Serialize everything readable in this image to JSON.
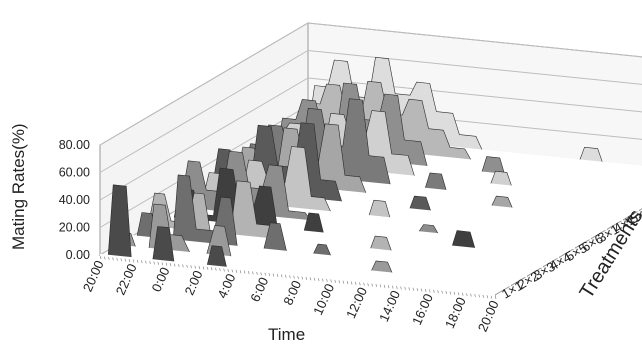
{
  "chart_data": {
    "type": "area",
    "subtype": "3d-ribbon",
    "title": "",
    "xlabel": "Time",
    "ylabel": "Mating Rates(%)",
    "depth_label": "Treatments",
    "z_ticks": [
      "0.00",
      "20.00",
      "40.00",
      "60.00",
      "80.00"
    ],
    "zlim": [
      0,
      80
    ],
    "x_ticks": [
      "20:00",
      "22:00",
      "0:00",
      "2:00",
      "4:00",
      "6:00",
      "8:00",
      "10:00",
      "12:00",
      "14:00",
      "16:00",
      "18:00",
      "20:00"
    ],
    "x_range_hours": [
      0,
      24
    ],
    "grid": true,
    "legend": "none",
    "series": [
      {
        "name": "1×1",
        "color": "#4a4a4a",
        "points": [
          [
            0.5,
            0
          ],
          [
            0.8,
            52
          ],
          [
            1.6,
            52
          ],
          [
            1.9,
            0
          ],
          [
            3.2,
            0
          ],
          [
            3.5,
            25
          ],
          [
            4.2,
            25
          ],
          [
            4.5,
            0
          ],
          [
            6.5,
            0
          ],
          [
            6.8,
            15
          ],
          [
            7.4,
            15
          ],
          [
            7.7,
            0
          ],
          [
            24,
            0
          ]
        ]
      },
      {
        "name": "2×2",
        "color": "#9a9a9a",
        "points": [
          [
            0,
            0
          ],
          [
            0.3,
            10
          ],
          [
            0.9,
            10
          ],
          [
            1.2,
            0
          ],
          [
            2.0,
            0
          ],
          [
            2.3,
            33
          ],
          [
            3.0,
            33
          ],
          [
            3.3,
            12
          ],
          [
            4.0,
            12
          ],
          [
            4.5,
            0
          ],
          [
            5.5,
            0
          ],
          [
            6.0,
            22
          ],
          [
            6.6,
            22
          ],
          [
            7.0,
            0
          ],
          [
            15.5,
            0
          ],
          [
            15.8,
            8
          ],
          [
            16.5,
            8
          ],
          [
            16.8,
            0
          ],
          [
            24,
            0
          ]
        ]
      },
      {
        "name": "3×3",
        "color": "#6e6e6e",
        "points": [
          [
            0.3,
            0
          ],
          [
            0.6,
            18
          ],
          [
            1.2,
            18
          ],
          [
            1.6,
            0
          ],
          [
            2.5,
            0
          ],
          [
            2.8,
            48
          ],
          [
            3.5,
            48
          ],
          [
            3.9,
            10
          ],
          [
            5.0,
            10
          ],
          [
            5.4,
            35
          ],
          [
            6.0,
            35
          ],
          [
            6.4,
            0
          ],
          [
            8.0,
            0
          ],
          [
            8.4,
            20
          ],
          [
            9.0,
            20
          ],
          [
            9.4,
            0
          ],
          [
            11.0,
            0
          ],
          [
            11.3,
            8
          ],
          [
            11.8,
            8
          ],
          [
            12.1,
            0
          ],
          [
            24,
            0
          ]
        ]
      },
      {
        "name": "4×4",
        "color": "#b3b3b3",
        "points": [
          [
            0,
            0
          ],
          [
            0.4,
            25
          ],
          [
            1.0,
            25
          ],
          [
            1.4,
            6
          ],
          [
            2.4,
            6
          ],
          [
            2.8,
            28
          ],
          [
            3.4,
            28
          ],
          [
            3.8,
            0
          ],
          [
            5.0,
            0
          ],
          [
            5.4,
            40
          ],
          [
            6.2,
            40
          ],
          [
            6.6,
            10
          ],
          [
            7.4,
            10
          ],
          [
            7.8,
            0
          ],
          [
            13.5,
            0
          ],
          [
            13.8,
            10
          ],
          [
            14.5,
            10
          ],
          [
            14.8,
            0
          ],
          [
            24,
            0
          ]
        ]
      },
      {
        "name": "5×5",
        "color": "#3f3f3f",
        "points": [
          [
            0.6,
            0
          ],
          [
            1.0,
            22
          ],
          [
            1.8,
            22
          ],
          [
            2.2,
            5
          ],
          [
            3.0,
            5
          ],
          [
            3.4,
            40
          ],
          [
            4.2,
            40
          ],
          [
            4.6,
            12
          ],
          [
            5.4,
            12
          ],
          [
            5.8,
            30
          ],
          [
            6.5,
            30
          ],
          [
            6.9,
            0
          ],
          [
            8.5,
            0
          ],
          [
            8.8,
            14
          ],
          [
            9.4,
            14
          ],
          [
            9.7,
            0
          ],
          [
            17.5,
            0
          ],
          [
            17.8,
            12
          ],
          [
            18.6,
            12
          ],
          [
            18.9,
            0
          ],
          [
            24,
            0
          ]
        ]
      },
      {
        "name": "6×6",
        "color": "#8d8d8d",
        "points": [
          [
            0,
            0
          ],
          [
            0.5,
            35
          ],
          [
            1.2,
            35
          ],
          [
            1.6,
            15
          ],
          [
            2.6,
            15
          ],
          [
            3.0,
            45
          ],
          [
            3.8,
            45
          ],
          [
            4.2,
            20
          ],
          [
            5.0,
            20
          ],
          [
            5.4,
            38
          ],
          [
            6.2,
            38
          ],
          [
            6.6,
            6
          ],
          [
            7.6,
            6
          ],
          [
            8.0,
            0
          ],
          [
            14.5,
            0
          ],
          [
            14.8,
            6
          ],
          [
            15.4,
            6
          ],
          [
            15.7,
            0
          ],
          [
            24,
            0
          ]
        ]
      },
      {
        "name": "3×1",
        "color": "#c4c4c4",
        "points": [
          [
            0.4,
            0
          ],
          [
            0.8,
            20
          ],
          [
            1.5,
            20
          ],
          [
            1.9,
            8
          ],
          [
            2.8,
            8
          ],
          [
            3.2,
            32
          ],
          [
            4.0,
            32
          ],
          [
            4.4,
            18
          ],
          [
            5.4,
            18
          ],
          [
            5.8,
            45
          ],
          [
            6.6,
            45
          ],
          [
            7.0,
            10
          ],
          [
            7.8,
            10
          ],
          [
            8.2,
            0
          ],
          [
            10.5,
            0
          ],
          [
            10.8,
            12
          ],
          [
            11.5,
            12
          ],
          [
            11.8,
            0
          ],
          [
            24,
            0
          ]
        ]
      },
      {
        "name": "4×1",
        "color": "#5a5a5a",
        "points": [
          [
            0,
            0
          ],
          [
            0.4,
            30
          ],
          [
            1.1,
            30
          ],
          [
            1.5,
            12
          ],
          [
            2.4,
            12
          ],
          [
            2.8,
            50
          ],
          [
            3.6,
            50
          ],
          [
            4.0,
            22
          ],
          [
            5.0,
            22
          ],
          [
            5.4,
            55
          ],
          [
            6.2,
            55
          ],
          [
            6.6,
            15
          ],
          [
            7.5,
            15
          ],
          [
            7.9,
            0
          ],
          [
            12.0,
            0
          ],
          [
            12.3,
            10
          ],
          [
            13.0,
            10
          ],
          [
            13.3,
            0
          ],
          [
            24,
            0
          ]
        ]
      },
      {
        "name": "5×1",
        "color": "#a6a6a6",
        "points": [
          [
            0.5,
            0
          ],
          [
            0.9,
            25
          ],
          [
            1.6,
            25
          ],
          [
            2.0,
            10
          ],
          [
            3.0,
            10
          ],
          [
            3.4,
            42
          ],
          [
            4.2,
            42
          ],
          [
            4.6,
            20
          ],
          [
            5.5,
            20
          ],
          [
            5.9,
            48
          ],
          [
            6.7,
            48
          ],
          [
            7.1,
            12
          ],
          [
            8.0,
            12
          ],
          [
            8.4,
            0
          ],
          [
            16.0,
            0
          ],
          [
            16.3,
            8
          ],
          [
            17.0,
            8
          ],
          [
            17.3,
            0
          ],
          [
            24,
            0
          ]
        ]
      },
      {
        "name": "6×1",
        "color": "#7a7a7a",
        "points": [
          [
            0,
            0
          ],
          [
            0.4,
            20
          ],
          [
            1.1,
            20
          ],
          [
            1.5,
            35
          ],
          [
            2.3,
            35
          ],
          [
            2.7,
            18
          ],
          [
            3.5,
            18
          ],
          [
            3.9,
            50
          ],
          [
            4.7,
            50
          ],
          [
            5.1,
            25
          ],
          [
            6.0,
            25
          ],
          [
            6.4,
            60
          ],
          [
            7.2,
            60
          ],
          [
            7.6,
            20
          ],
          [
            8.5,
            20
          ],
          [
            8.9,
            0
          ],
          [
            11.0,
            0
          ],
          [
            11.3,
            12
          ],
          [
            12.0,
            12
          ],
          [
            12.3,
            0
          ],
          [
            24,
            0
          ]
        ]
      },
      {
        "name": "1×3",
        "color": "#d0d0d0",
        "points": [
          [
            0.3,
            0
          ],
          [
            0.7,
            22
          ],
          [
            1.4,
            22
          ],
          [
            1.8,
            30
          ],
          [
            2.6,
            30
          ],
          [
            3.0,
            15
          ],
          [
            3.9,
            15
          ],
          [
            4.3,
            40
          ],
          [
            5.1,
            40
          ],
          [
            5.5,
            25
          ],
          [
            6.4,
            25
          ],
          [
            6.8,
            45
          ],
          [
            7.6,
            45
          ],
          [
            8.0,
            15
          ],
          [
            9.0,
            15
          ],
          [
            9.4,
            0
          ],
          [
            14.0,
            0
          ],
          [
            14.3,
            10
          ],
          [
            15.0,
            10
          ],
          [
            15.3,
            0
          ],
          [
            24,
            0
          ]
        ]
      },
      {
        "name": "1×4",
        "color": "#8f8f8f",
        "points": [
          [
            0,
            0
          ],
          [
            0.4,
            25
          ],
          [
            1.2,
            25
          ],
          [
            1.6,
            40
          ],
          [
            2.4,
            40
          ],
          [
            2.8,
            20
          ],
          [
            3.7,
            20
          ],
          [
            4.1,
            55
          ],
          [
            4.9,
            55
          ],
          [
            5.3,
            30
          ],
          [
            6.2,
            30
          ],
          [
            6.6,
            50
          ],
          [
            7.4,
            50
          ],
          [
            7.8,
            18
          ],
          [
            8.8,
            18
          ],
          [
            9.2,
            0
          ],
          [
            12.5,
            0
          ],
          [
            12.8,
            12
          ],
          [
            13.6,
            12
          ],
          [
            13.9,
            0
          ],
          [
            24,
            0
          ]
        ]
      },
      {
        "name": "1×5",
        "color": "#b8b8b8",
        "points": [
          [
            0.5,
            0
          ],
          [
            0.9,
            30
          ],
          [
            1.7,
            30
          ],
          [
            2.1,
            45
          ],
          [
            2.9,
            45
          ],
          [
            3.3,
            25
          ],
          [
            4.2,
            25
          ],
          [
            4.6,
            50
          ],
          [
            5.4,
            50
          ],
          [
            5.8,
            28
          ],
          [
            6.7,
            28
          ],
          [
            7.1,
            40
          ],
          [
            7.9,
            40
          ],
          [
            8.3,
            20
          ],
          [
            9.2,
            20
          ],
          [
            9.6,
            8
          ],
          [
            10.5,
            8
          ],
          [
            10.9,
            0
          ],
          [
            24,
            0
          ]
        ]
      },
      {
        "name": "1×6",
        "color": "#dddddd",
        "points": [
          [
            0,
            0
          ],
          [
            0.4,
            35
          ],
          [
            1.2,
            35
          ],
          [
            1.6,
            55
          ],
          [
            2.4,
            55
          ],
          [
            2.8,
            30
          ],
          [
            3.7,
            30
          ],
          [
            4.1,
            60
          ],
          [
            4.9,
            60
          ],
          [
            5.3,
            35
          ],
          [
            6.2,
            35
          ],
          [
            6.6,
            45
          ],
          [
            7.4,
            45
          ],
          [
            7.8,
            25
          ],
          [
            8.8,
            25
          ],
          [
            9.2,
            10
          ],
          [
            10.2,
            10
          ],
          [
            10.6,
            0
          ],
          [
            16.5,
            0
          ],
          [
            16.8,
            10
          ],
          [
            17.6,
            10
          ],
          [
            17.9,
            0
          ],
          [
            24,
            0
          ]
        ]
      }
    ]
  }
}
